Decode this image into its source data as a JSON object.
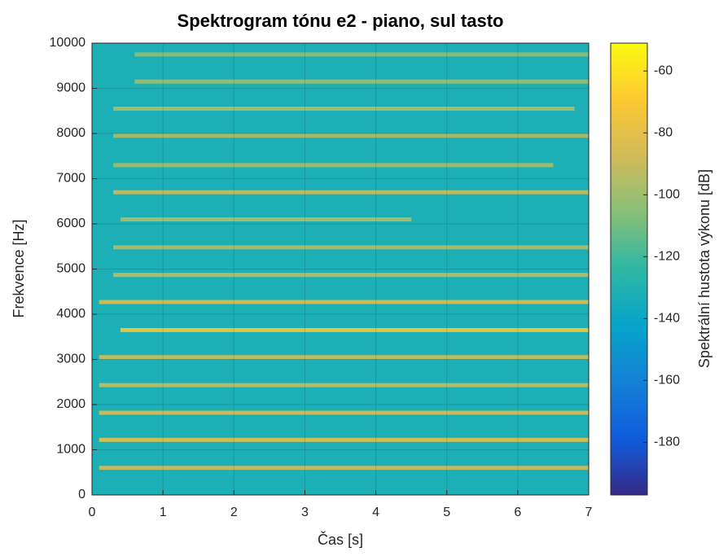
{
  "chart_data": {
    "type": "spectrogram",
    "title": "Spektrogram tónu e2 - piano, sul tasto",
    "xlabel": "Čas [s]",
    "ylabel": "Frekvence [Hz]",
    "xlim": [
      0,
      7
    ],
    "xticks": [
      0,
      1,
      2,
      3,
      4,
      5,
      6,
      7
    ],
    "ylim": [
      0,
      10000
    ],
    "yticks": [
      0,
      1000,
      2000,
      3000,
      4000,
      5000,
      6000,
      7000,
      8000,
      9000,
      10000
    ],
    "grid": true,
    "background_level": -132,
    "harmonics": [
      {
        "frequency": 600,
        "level": -88,
        "start": 0.1,
        "end": 7
      },
      {
        "frequency": 1220,
        "level": -80,
        "start": 0.1,
        "end": 7
      },
      {
        "frequency": 1820,
        "level": -84,
        "start": 0.1,
        "end": 7
      },
      {
        "frequency": 2430,
        "level": -90,
        "start": 0.1,
        "end": 7
      },
      {
        "frequency": 3050,
        "level": -88,
        "start": 0.1,
        "end": 7
      },
      {
        "frequency": 3650,
        "level": -72,
        "start": 0.4,
        "end": 7
      },
      {
        "frequency": 4270,
        "level": -84,
        "start": 0.1,
        "end": 7
      },
      {
        "frequency": 4870,
        "level": -92,
        "start": 0.3,
        "end": 7
      },
      {
        "frequency": 5480,
        "level": -95,
        "start": 0.3,
        "end": 7
      },
      {
        "frequency": 6100,
        "level": -96,
        "start": 0.4,
        "end": 4.5
      },
      {
        "frequency": 6700,
        "level": -88,
        "start": 0.3,
        "end": 7
      },
      {
        "frequency": 7300,
        "level": -98,
        "start": 0.3,
        "end": 6.5
      },
      {
        "frequency": 7950,
        "level": -96,
        "start": 0.3,
        "end": 7
      },
      {
        "frequency": 8550,
        "level": -96,
        "start": 0.3,
        "end": 6.8
      },
      {
        "frequency": 9150,
        "level": -100,
        "start": 0.6,
        "end": 7
      },
      {
        "frequency": 9750,
        "level": -104,
        "start": 0.6,
        "end": 7
      }
    ],
    "colorbar": {
      "label": "Spektrální hustota výkonu [dB]",
      "clim": [
        -197,
        -51
      ],
      "cticks": [
        -180,
        -160,
        -140,
        -120,
        -100,
        -80,
        -60
      ],
      "colormap": [
        "#352a87",
        "#0f5cdd",
        "#1481d6",
        "#06a4ca",
        "#2eb7a4",
        "#87bf77",
        "#d1bb59",
        "#fec832",
        "#f9fb0e"
      ]
    }
  }
}
